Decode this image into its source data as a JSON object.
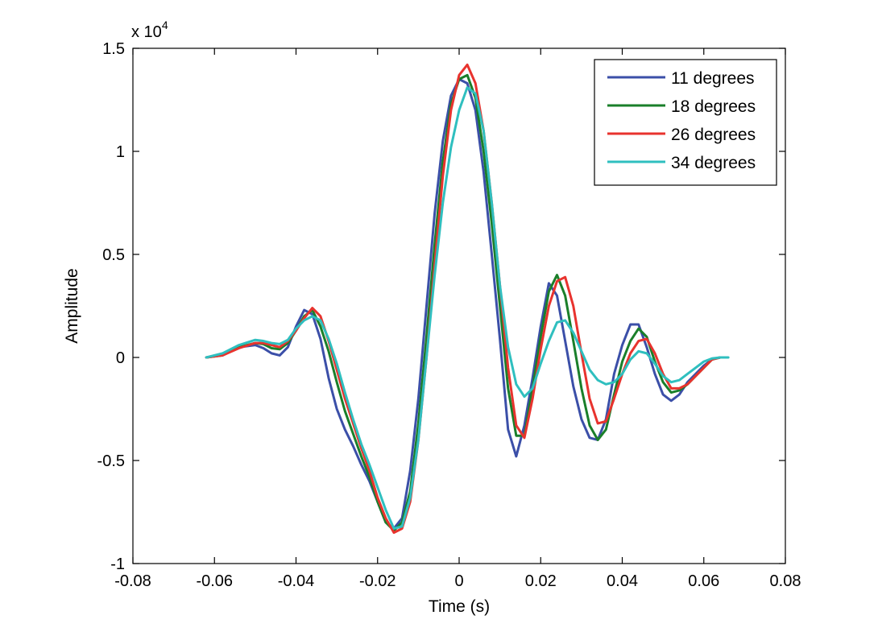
{
  "chart_data": {
    "type": "line",
    "xlabel": "Time (s)",
    "ylabel": "Amplitude",
    "y_multiplier": {
      "base": "x 10",
      "exponent": "4"
    },
    "xlim": [
      -0.08,
      0.08
    ],
    "ylim": [
      -10000,
      15000
    ],
    "x_ticks": [
      -0.08,
      -0.06,
      -0.04,
      -0.02,
      0,
      0.02,
      0.04,
      0.06,
      0.08
    ],
    "x_tick_labels": [
      "-0.08",
      "-0.06",
      "-0.04",
      "-0.02",
      "0",
      "0.02",
      "0.04",
      "0.06",
      "0.08"
    ],
    "y_ticks": [
      -10000,
      -5000,
      0,
      5000,
      10000,
      15000
    ],
    "y_tick_labels": [
      "-1",
      "-0.5",
      "0",
      "0.5",
      "1",
      "1.5"
    ],
    "grid": false,
    "legend_position": "top-right",
    "series": [
      {
        "name": "11 degrees",
        "color": "#3b4fa8",
        "points": [
          [
            -0.062,
            0
          ],
          [
            -0.058,
            150
          ],
          [
            -0.054,
            500
          ],
          [
            -0.05,
            600
          ],
          [
            -0.048,
            450
          ],
          [
            -0.046,
            200
          ],
          [
            -0.044,
            100
          ],
          [
            -0.042,
            500
          ],
          [
            -0.04,
            1500
          ],
          [
            -0.038,
            2300
          ],
          [
            -0.036,
            2100
          ],
          [
            -0.034,
            900
          ],
          [
            -0.032,
            -1000
          ],
          [
            -0.03,
            -2500
          ],
          [
            -0.028,
            -3500
          ],
          [
            -0.026,
            -4300
          ],
          [
            -0.024,
            -5200
          ],
          [
            -0.022,
            -6000
          ],
          [
            -0.02,
            -7000
          ],
          [
            -0.018,
            -8000
          ],
          [
            -0.016,
            -8300
          ],
          [
            -0.014,
            -7800
          ],
          [
            -0.012,
            -5500
          ],
          [
            -0.01,
            -2000
          ],
          [
            -0.008,
            2500
          ],
          [
            -0.006,
            7000
          ],
          [
            -0.004,
            10500
          ],
          [
            -0.002,
            12700
          ],
          [
            0,
            13500
          ],
          [
            0.002,
            13300
          ],
          [
            0.004,
            12000
          ],
          [
            0.006,
            9000
          ],
          [
            0.008,
            5000
          ],
          [
            0.01,
            900
          ],
          [
            0.012,
            -3500
          ],
          [
            0.014,
            -4800
          ],
          [
            0.016,
            -3300
          ],
          [
            0.018,
            -1000
          ],
          [
            0.02,
            1500
          ],
          [
            0.022,
            3600
          ],
          [
            0.024,
            3000
          ],
          [
            0.026,
            800
          ],
          [
            0.028,
            -1400
          ],
          [
            0.03,
            -3000
          ],
          [
            0.032,
            -3900
          ],
          [
            0.034,
            -4000
          ],
          [
            0.036,
            -3000
          ],
          [
            0.038,
            -800
          ],
          [
            0.04,
            600
          ],
          [
            0.042,
            1600
          ],
          [
            0.044,
            1600
          ],
          [
            0.046,
            500
          ],
          [
            0.048,
            -800
          ],
          [
            0.05,
            -1800
          ],
          [
            0.052,
            -2100
          ],
          [
            0.054,
            -1800
          ],
          [
            0.056,
            -1200
          ],
          [
            0.058,
            -800
          ],
          [
            0.06,
            -400
          ],
          [
            0.062,
            -100
          ],
          [
            0.064,
            0
          ]
        ]
      },
      {
        "name": "18 degrees",
        "color": "#1a7f2a",
        "points": [
          [
            -0.062,
            0
          ],
          [
            -0.058,
            100
          ],
          [
            -0.054,
            500
          ],
          [
            -0.05,
            700
          ],
          [
            -0.048,
            650
          ],
          [
            -0.046,
            450
          ],
          [
            -0.044,
            400
          ],
          [
            -0.042,
            700
          ],
          [
            -0.04,
            1300
          ],
          [
            -0.038,
            2000
          ],
          [
            -0.036,
            2300
          ],
          [
            -0.034,
            1500
          ],
          [
            -0.032,
            300
          ],
          [
            -0.03,
            -1200
          ],
          [
            -0.028,
            -2600
          ],
          [
            -0.026,
            -3700
          ],
          [
            -0.024,
            -4800
          ],
          [
            -0.022,
            -5800
          ],
          [
            -0.02,
            -7000
          ],
          [
            -0.018,
            -8000
          ],
          [
            -0.016,
            -8400
          ],
          [
            -0.014,
            -8000
          ],
          [
            -0.012,
            -6500
          ],
          [
            -0.01,
            -3200
          ],
          [
            -0.008,
            1000
          ],
          [
            -0.006,
            5500
          ],
          [
            -0.004,
            9500
          ],
          [
            -0.002,
            12300
          ],
          [
            0,
            13500
          ],
          [
            0.002,
            13700
          ],
          [
            0.004,
            12600
          ],
          [
            0.006,
            10000
          ],
          [
            0.008,
            6500
          ],
          [
            0.01,
            2500
          ],
          [
            0.012,
            -1500
          ],
          [
            0.014,
            -3800
          ],
          [
            0.016,
            -3800
          ],
          [
            0.018,
            -1500
          ],
          [
            0.02,
            1000
          ],
          [
            0.022,
            3200
          ],
          [
            0.024,
            4000
          ],
          [
            0.026,
            3000
          ],
          [
            0.028,
            800
          ],
          [
            0.03,
            -1500
          ],
          [
            0.032,
            -3300
          ],
          [
            0.034,
            -4000
          ],
          [
            0.036,
            -3500
          ],
          [
            0.038,
            -1800
          ],
          [
            0.04,
            -200
          ],
          [
            0.042,
            800
          ],
          [
            0.044,
            1400
          ],
          [
            0.046,
            1000
          ],
          [
            0.048,
            -200
          ],
          [
            0.05,
            -1200
          ],
          [
            0.052,
            -1700
          ],
          [
            0.054,
            -1600
          ],
          [
            0.056,
            -1300
          ],
          [
            0.058,
            -900
          ],
          [
            0.06,
            -500
          ],
          [
            0.062,
            -100
          ],
          [
            0.064,
            0
          ]
        ]
      },
      {
        "name": "26 degrees",
        "color": "#e8332e",
        "points": [
          [
            -0.062,
            0
          ],
          [
            -0.058,
            100
          ],
          [
            -0.054,
            450
          ],
          [
            -0.05,
            700
          ],
          [
            -0.048,
            700
          ],
          [
            -0.046,
            600
          ],
          [
            -0.044,
            500
          ],
          [
            -0.042,
            800
          ],
          [
            -0.04,
            1300
          ],
          [
            -0.038,
            1900
          ],
          [
            -0.036,
            2400
          ],
          [
            -0.034,
            2000
          ],
          [
            -0.032,
            800
          ],
          [
            -0.03,
            -600
          ],
          [
            -0.028,
            -2000
          ],
          [
            -0.026,
            -3200
          ],
          [
            -0.024,
            -4400
          ],
          [
            -0.022,
            -5500
          ],
          [
            -0.02,
            -6800
          ],
          [
            -0.018,
            -7800
          ],
          [
            -0.016,
            -8500
          ],
          [
            -0.014,
            -8300
          ],
          [
            -0.012,
            -7000
          ],
          [
            -0.01,
            -4000
          ],
          [
            -0.008,
            0
          ],
          [
            -0.006,
            4500
          ],
          [
            -0.004,
            8800
          ],
          [
            -0.002,
            12000
          ],
          [
            0,
            13700
          ],
          [
            0.002,
            14200
          ],
          [
            0.004,
            13300
          ],
          [
            0.006,
            11000
          ],
          [
            0.008,
            7500
          ],
          [
            0.01,
            3500
          ],
          [
            0.012,
            -500
          ],
          [
            0.014,
            -3300
          ],
          [
            0.016,
            -3900
          ],
          [
            0.018,
            -2000
          ],
          [
            0.02,
            400
          ],
          [
            0.022,
            2500
          ],
          [
            0.024,
            3700
          ],
          [
            0.026,
            3900
          ],
          [
            0.028,
            2500
          ],
          [
            0.03,
            200
          ],
          [
            0.032,
            -2000
          ],
          [
            0.034,
            -3200
          ],
          [
            0.036,
            -3100
          ],
          [
            0.038,
            -2000
          ],
          [
            0.04,
            -800
          ],
          [
            0.042,
            200
          ],
          [
            0.044,
            800
          ],
          [
            0.046,
            900
          ],
          [
            0.048,
            200
          ],
          [
            0.05,
            -800
          ],
          [
            0.052,
            -1500
          ],
          [
            0.054,
            -1500
          ],
          [
            0.056,
            -1300
          ],
          [
            0.058,
            -900
          ],
          [
            0.06,
            -500
          ],
          [
            0.062,
            -100
          ],
          [
            0.064,
            0
          ]
        ]
      },
      {
        "name": "34 degrees",
        "color": "#2fbfbf",
        "points": [
          [
            -0.062,
            0
          ],
          [
            -0.058,
            200
          ],
          [
            -0.054,
            600
          ],
          [
            -0.05,
            850
          ],
          [
            -0.048,
            800
          ],
          [
            -0.046,
            700
          ],
          [
            -0.044,
            650
          ],
          [
            -0.042,
            850
          ],
          [
            -0.04,
            1400
          ],
          [
            -0.038,
            1800
          ],
          [
            -0.036,
            2000
          ],
          [
            -0.034,
            1800
          ],
          [
            -0.032,
            900
          ],
          [
            -0.03,
            -300
          ],
          [
            -0.028,
            -1700
          ],
          [
            -0.026,
            -3000
          ],
          [
            -0.024,
            -4200
          ],
          [
            -0.022,
            -5200
          ],
          [
            -0.02,
            -6300
          ],
          [
            -0.018,
            -7400
          ],
          [
            -0.016,
            -8300
          ],
          [
            -0.014,
            -8200
          ],
          [
            -0.012,
            -6800
          ],
          [
            -0.01,
            -4000
          ],
          [
            -0.008,
            0
          ],
          [
            -0.006,
            4000
          ],
          [
            -0.004,
            7500
          ],
          [
            -0.002,
            10200
          ],
          [
            0,
            12000
          ],
          [
            0.002,
            13100
          ],
          [
            0.004,
            12800
          ],
          [
            0.006,
            11000
          ],
          [
            0.008,
            7500
          ],
          [
            0.01,
            3500
          ],
          [
            0.012,
            500
          ],
          [
            0.014,
            -1300
          ],
          [
            0.016,
            -1900
          ],
          [
            0.018,
            -1500
          ],
          [
            0.02,
            -300
          ],
          [
            0.022,
            800
          ],
          [
            0.024,
            1700
          ],
          [
            0.026,
            1800
          ],
          [
            0.028,
            1200
          ],
          [
            0.03,
            300
          ],
          [
            0.032,
            -600
          ],
          [
            0.034,
            -1100
          ],
          [
            0.036,
            -1300
          ],
          [
            0.038,
            -1200
          ],
          [
            0.04,
            -800
          ],
          [
            0.042,
            -100
          ],
          [
            0.044,
            300
          ],
          [
            0.046,
            200
          ],
          [
            0.048,
            -300
          ],
          [
            0.05,
            -900
          ],
          [
            0.052,
            -1200
          ],
          [
            0.054,
            -1100
          ],
          [
            0.056,
            -800
          ],
          [
            0.058,
            -500
          ],
          [
            0.06,
            -200
          ],
          [
            0.062,
            -50
          ],
          [
            0.064,
            0
          ],
          [
            0.066,
            0
          ]
        ]
      }
    ]
  }
}
